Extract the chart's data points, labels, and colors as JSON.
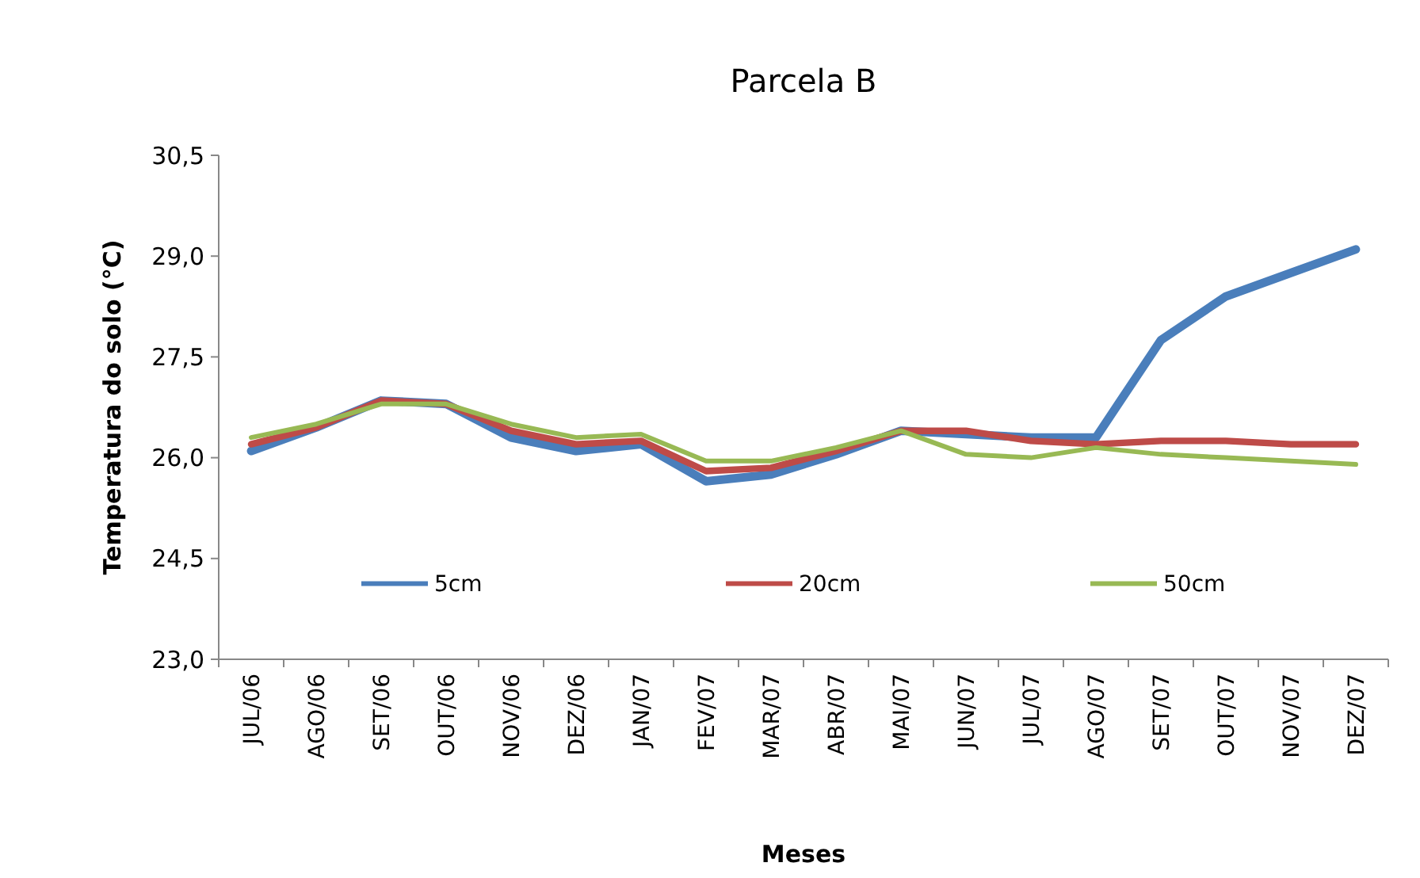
{
  "chart_data": {
    "type": "line",
    "title": "Parcela B",
    "xlabel": "Meses",
    "ylabel": "Temperatura do solo (°C)",
    "categories": [
      "JUL/06",
      "AGO/06",
      "SET/06",
      "OUT/06",
      "NOV/06",
      "DEZ/06",
      "JAN/07",
      "FEV/07",
      "MAR/07",
      "ABR/07",
      "MAI/07",
      "JUN/07",
      "JUL/07",
      "AGO/07",
      "SET/07",
      "OUT/07",
      "NOV/07",
      "DEZ/07"
    ],
    "series": [
      {
        "name": "5cm",
        "color": "#4a7ebb",
        "values": [
          26.1,
          26.45,
          26.85,
          26.8,
          26.3,
          26.1,
          26.2,
          25.65,
          25.75,
          26.05,
          26.4,
          26.35,
          26.3,
          26.3,
          27.75,
          28.4,
          28.75,
          29.1
        ]
      },
      {
        "name": "20cm",
        "color": "#be4b48",
        "values": [
          26.2,
          26.45,
          26.85,
          26.8,
          26.4,
          26.2,
          26.25,
          25.8,
          25.85,
          26.1,
          26.4,
          26.4,
          26.25,
          26.2,
          26.25,
          26.25,
          26.2,
          26.2
        ]
      },
      {
        "name": "50cm",
        "color": "#98b954",
        "values": [
          26.3,
          26.5,
          26.8,
          26.8,
          26.5,
          26.3,
          26.35,
          25.95,
          25.95,
          26.15,
          26.4,
          26.05,
          26.0,
          26.15,
          26.05,
          26.0,
          25.95,
          25.9
        ]
      }
    ],
    "ylim": [
      23,
      30.5
    ],
    "yticks": [
      {
        "value": 23,
        "label": "23,0"
      },
      {
        "value": 24.5,
        "label": "24,5"
      },
      {
        "value": 26,
        "label": "26,0"
      },
      {
        "value": 27.5,
        "label": "27,5"
      },
      {
        "value": 29,
        "label": "29,0"
      },
      {
        "value": 30.5,
        "label": "30,5"
      }
    ],
    "grid": false,
    "legend": "bottom",
    "marker": "none",
    "line_style": "solid"
  }
}
